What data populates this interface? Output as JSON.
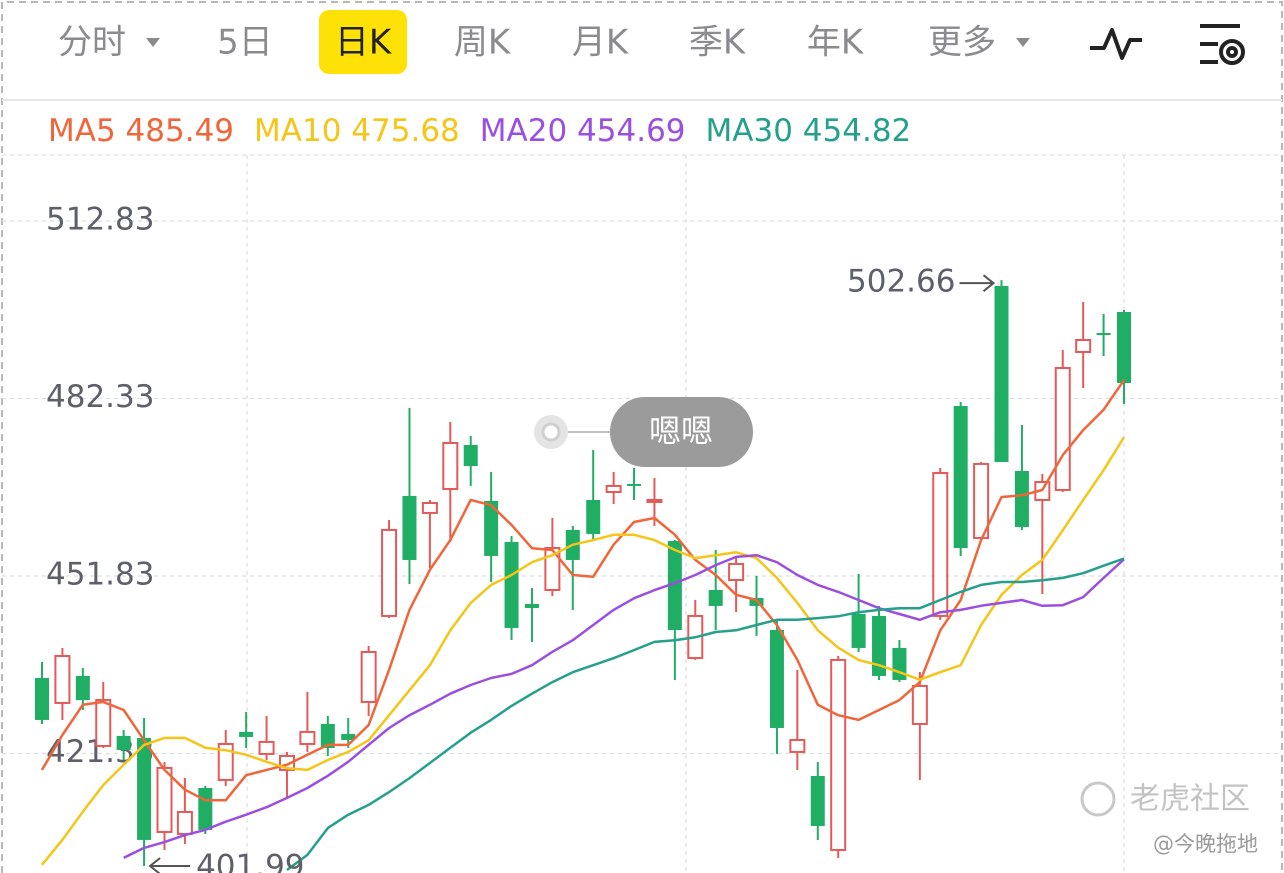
{
  "tabs": [
    {
      "label": "分时",
      "dropdown": true
    },
    {
      "label": "5日"
    },
    {
      "label": "日K",
      "selected": true
    },
    {
      "label": "周K"
    },
    {
      "label": "月K"
    },
    {
      "label": "季K"
    },
    {
      "label": "年K"
    },
    {
      "label": "更多",
      "dropdown": true
    }
  ],
  "bubble": "嗯嗯",
  "watermark": {
    "brand": "老虎社区",
    "author": "@今晚拖地"
  },
  "chart_data": {
    "type": "candlestick",
    "up_color": "#e35a58",
    "down_color": "#1fae64",
    "ylim": [
      400.79,
      524.17
    ],
    "yticks": [
      512.83,
      482.33,
      451.83,
      421.33
    ],
    "grid": true,
    "open": [
      434.3,
      430.01,
      434.65,
      422.62,
      424.34,
      423.99,
      407.84,
      407.5,
      415.4,
      416.78,
      425.03,
      421.25,
      418.5,
      422.96,
      426.4,
      424.68,
      430.18,
      444.96,
      465.58,
      462.66,
      466.78,
      474.34,
      464.72,
      457.67,
      447.02,
      449.42,
      459.74,
      464.89,
      466.26,
      467.64,
      464.55,
      457.84,
      437.74,
      449.42,
      451.14,
      448.05,
      442.55,
      421.59,
      417.46,
      404.75,
      445.3,
      444.96,
      439.46,
      426.4,
      444.96,
      481.04,
      458.36,
      501.66,
      469.87,
      464.89,
      466.61,
      490.32,
      493.59,
      497.19
    ],
    "high": [
      437.05,
      439.46,
      436.02,
      433.62,
      425.37,
      427.43,
      419.87,
      417.12,
      415.75,
      425.37,
      428.46,
      427.77,
      421.59,
      431.9,
      427.77,
      427.43,
      439.8,
      461.45,
      480.7,
      464.89,
      478.29,
      475.89,
      469.7,
      458.7,
      449.77,
      461.8,
      460.42,
      473.48,
      469.7,
      470.39,
      468.67,
      458.02,
      447.71,
      456.3,
      454.92,
      451.83,
      444.27,
      435.68,
      419.87,
      438.08,
      452.17,
      446.68,
      440.83,
      435.34,
      470.39,
      481.73,
      471.42,
      502.66,
      477.78,
      469.36,
      490.66,
      498.91,
      496.85,
      497.54
    ],
    "low": [
      426.4,
      427.09,
      428.81,
      422.28,
      420.21,
      401.99,
      404.75,
      405.78,
      407.5,
      415.75,
      422.28,
      420.21,
      413.68,
      421.59,
      420.9,
      422.28,
      427.77,
      444.61,
      450.46,
      453.21,
      457.67,
      467.3,
      450.8,
      440.83,
      440.49,
      448.39,
      445.99,
      458.02,
      464.2,
      464.89,
      460.42,
      433.96,
      437.4,
      442.55,
      445.64,
      441.52,
      421.25,
      418.5,
      406.47,
      403.37,
      438.77,
      433.96,
      433.62,
      416.78,
      444.27,
      455.27,
      458.02,
      471.42,
      459.74,
      448.74,
      466.26,
      484.14,
      489.63,
      481.39
    ],
    "close": [
      427.09,
      438.08,
      430.52,
      430.52,
      421.93,
      406.47,
      418.84,
      411.28,
      408.19,
      422.96,
      424.17,
      423.31,
      420.9,
      425.03,
      422.28,
      423.65,
      438.77,
      459.74,
      454.58,
      464.37,
      474.68,
      470.73,
      455.27,
      442.9,
      446.33,
      456.64,
      454.58,
      459.05,
      467.3,
      467.3,
      464.89,
      442.55,
      444.96,
      446.68,
      453.89,
      446.68,
      425.71,
      423.65,
      408.87,
      437.4,
      439.46,
      434.65,
      433.96,
      432.93,
      469.53,
      456.64,
      471.08,
      471.42,
      460.25,
      467.98,
      487.57,
      492.38,
      493.24,
      484.99
    ],
    "series": [
      {
        "name": "MA5",
        "color": "#f0663a",
        "values": [
          418.5,
          424.5,
          429.7,
          430.2,
          428.8,
          423.6,
          418.5,
          415.1,
          413.3,
          413.3,
          417.6,
          418.5,
          419.4,
          421.1,
          422.8,
          422.8,
          426.2,
          435.7,
          446.0,
          452.9,
          458.0,
          464.9,
          464.0,
          460.6,
          456.6,
          456.3,
          452.0,
          451.7,
          457.2,
          461.1,
          461.8,
          458.9,
          454.6,
          452.0,
          448.6,
          447.7,
          443.4,
          437.4,
          429.7,
          427.9,
          427.1,
          428.8,
          430.5,
          433.6,
          442.5,
          447.7,
          458.0,
          465.4,
          465.7,
          466.6,
          472.6,
          476.9,
          480.4,
          485.49
        ]
      },
      {
        "name": "MA10",
        "color": "#f5c518",
        "values": [
          402.2,
          406.5,
          411.3,
          415.9,
          419.4,
          422.8,
          424.0,
          424.0,
          422.3,
          421.9,
          421.1,
          419.9,
          418.8,
          418.5,
          420.2,
          421.6,
          423.6,
          427.9,
          432.2,
          436.5,
          442.5,
          447.2,
          450.3,
          452.0,
          454.2,
          455.4,
          457.2,
          458.0,
          458.9,
          458.9,
          458.0,
          456.3,
          454.9,
          455.4,
          455.9,
          454.9,
          451.5,
          447.2,
          442.5,
          439.5,
          437.4,
          436.5,
          435.3,
          434.0,
          435.3,
          436.5,
          443.4,
          448.6,
          452.0,
          454.6,
          459.7,
          464.9,
          470.0,
          475.68
        ]
      },
      {
        "name": "MA20",
        "color": "#9b4fe0",
        "values": [
          null,
          null,
          null,
          null,
          403.4,
          405.1,
          406.1,
          407.3,
          408.2,
          409.6,
          410.8,
          412.1,
          413.7,
          415.4,
          417.5,
          419.9,
          422.8,
          425.7,
          427.9,
          429.7,
          431.6,
          433.1,
          434.3,
          435.0,
          436.5,
          438.8,
          440.8,
          443.4,
          446.0,
          448.0,
          449.4,
          450.6,
          452.0,
          453.7,
          455.1,
          455.4,
          454.2,
          452.0,
          450.3,
          449.1,
          447.7,
          446.3,
          445.3,
          444.3,
          445.6,
          446.0,
          446.7,
          447.2,
          447.7,
          446.7,
          446.8,
          448.2,
          451.5,
          454.69
        ]
      },
      {
        "name": "MA30",
        "color": "#24a08c",
        "values": [
          null,
          null,
          null,
          null,
          null,
          null,
          null,
          null,
          null,
          null,
          null,
          null,
          401.3,
          403.9,
          408.5,
          410.8,
          412.5,
          414.7,
          417.1,
          419.7,
          422.3,
          424.9,
          427.1,
          429.5,
          431.6,
          433.6,
          435.3,
          436.5,
          437.7,
          439.1,
          440.5,
          440.8,
          441.3,
          442.2,
          442.5,
          443.4,
          444.3,
          444.3,
          444.6,
          444.9,
          445.6,
          446.0,
          446.3,
          446.3,
          447.7,
          449.1,
          450.3,
          450.8,
          450.8,
          451.1,
          451.5,
          452.3,
          453.6,
          454.82
        ]
      }
    ]
  }
}
